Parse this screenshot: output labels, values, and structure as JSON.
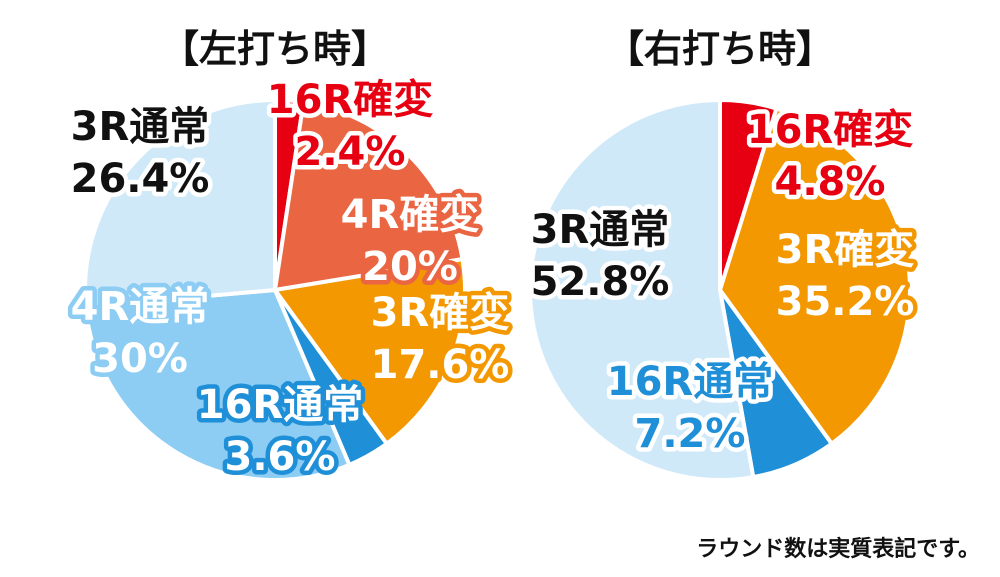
{
  "note": "ラウンド数は実質表記です。",
  "chart_data": [
    {
      "type": "pie",
      "title": "【左打ち時】",
      "slices": [
        {
          "name": "16R確変",
          "value": 2.4,
          "label": "2.4%",
          "color": "#e60012",
          "text_color": "#e60012",
          "stroke_color": "#ffffff"
        },
        {
          "name": "4R確変",
          "value": 20,
          "label": "20%",
          "color": "#ea6541",
          "text_color": "#ffffff",
          "stroke_color": "#ea6541"
        },
        {
          "name": "3R確変",
          "value": 17.6,
          "label": "17.6%",
          "color": "#f39800",
          "text_color": "#ffffff",
          "stroke_color": "#f39800"
        },
        {
          "name": "16R通常",
          "value": 3.6,
          "label": "3.6%",
          "color": "#1f8fd7",
          "text_color": "#ffffff",
          "stroke_color": "#1f8fd7"
        },
        {
          "name": "4R通常",
          "value": 30,
          "label": "30%",
          "color": "#8dcdf4",
          "text_color": "#ffffff",
          "stroke_color": "#8dcdf4"
        },
        {
          "name": "3R通常",
          "value": 26.4,
          "label": "26.4%",
          "color": "#d0e9f9",
          "text_color": "#111111",
          "stroke_color": "#ffffff"
        }
      ]
    },
    {
      "type": "pie",
      "title": "【右打ち時】",
      "slices": [
        {
          "name": "16R確変",
          "value": 4.8,
          "label": "4.8%",
          "color": "#e60012",
          "text_color": "#e60012",
          "stroke_color": "#ffffff"
        },
        {
          "name": "3R確変",
          "value": 35.2,
          "label": "35.2%",
          "color": "#f39800",
          "text_color": "#ffffff",
          "stroke_color": "#f39800"
        },
        {
          "name": "16R通常",
          "value": 7.2,
          "label": "7.2%",
          "color": "#1f8fd7",
          "text_color": "#1f8fd7",
          "stroke_color": "#ffffff"
        },
        {
          "name": "3R通常",
          "value": 52.8,
          "label": "52.8%",
          "color": "#d0e9f9",
          "text_color": "#111111",
          "stroke_color": "#ffffff"
        }
      ]
    }
  ]
}
